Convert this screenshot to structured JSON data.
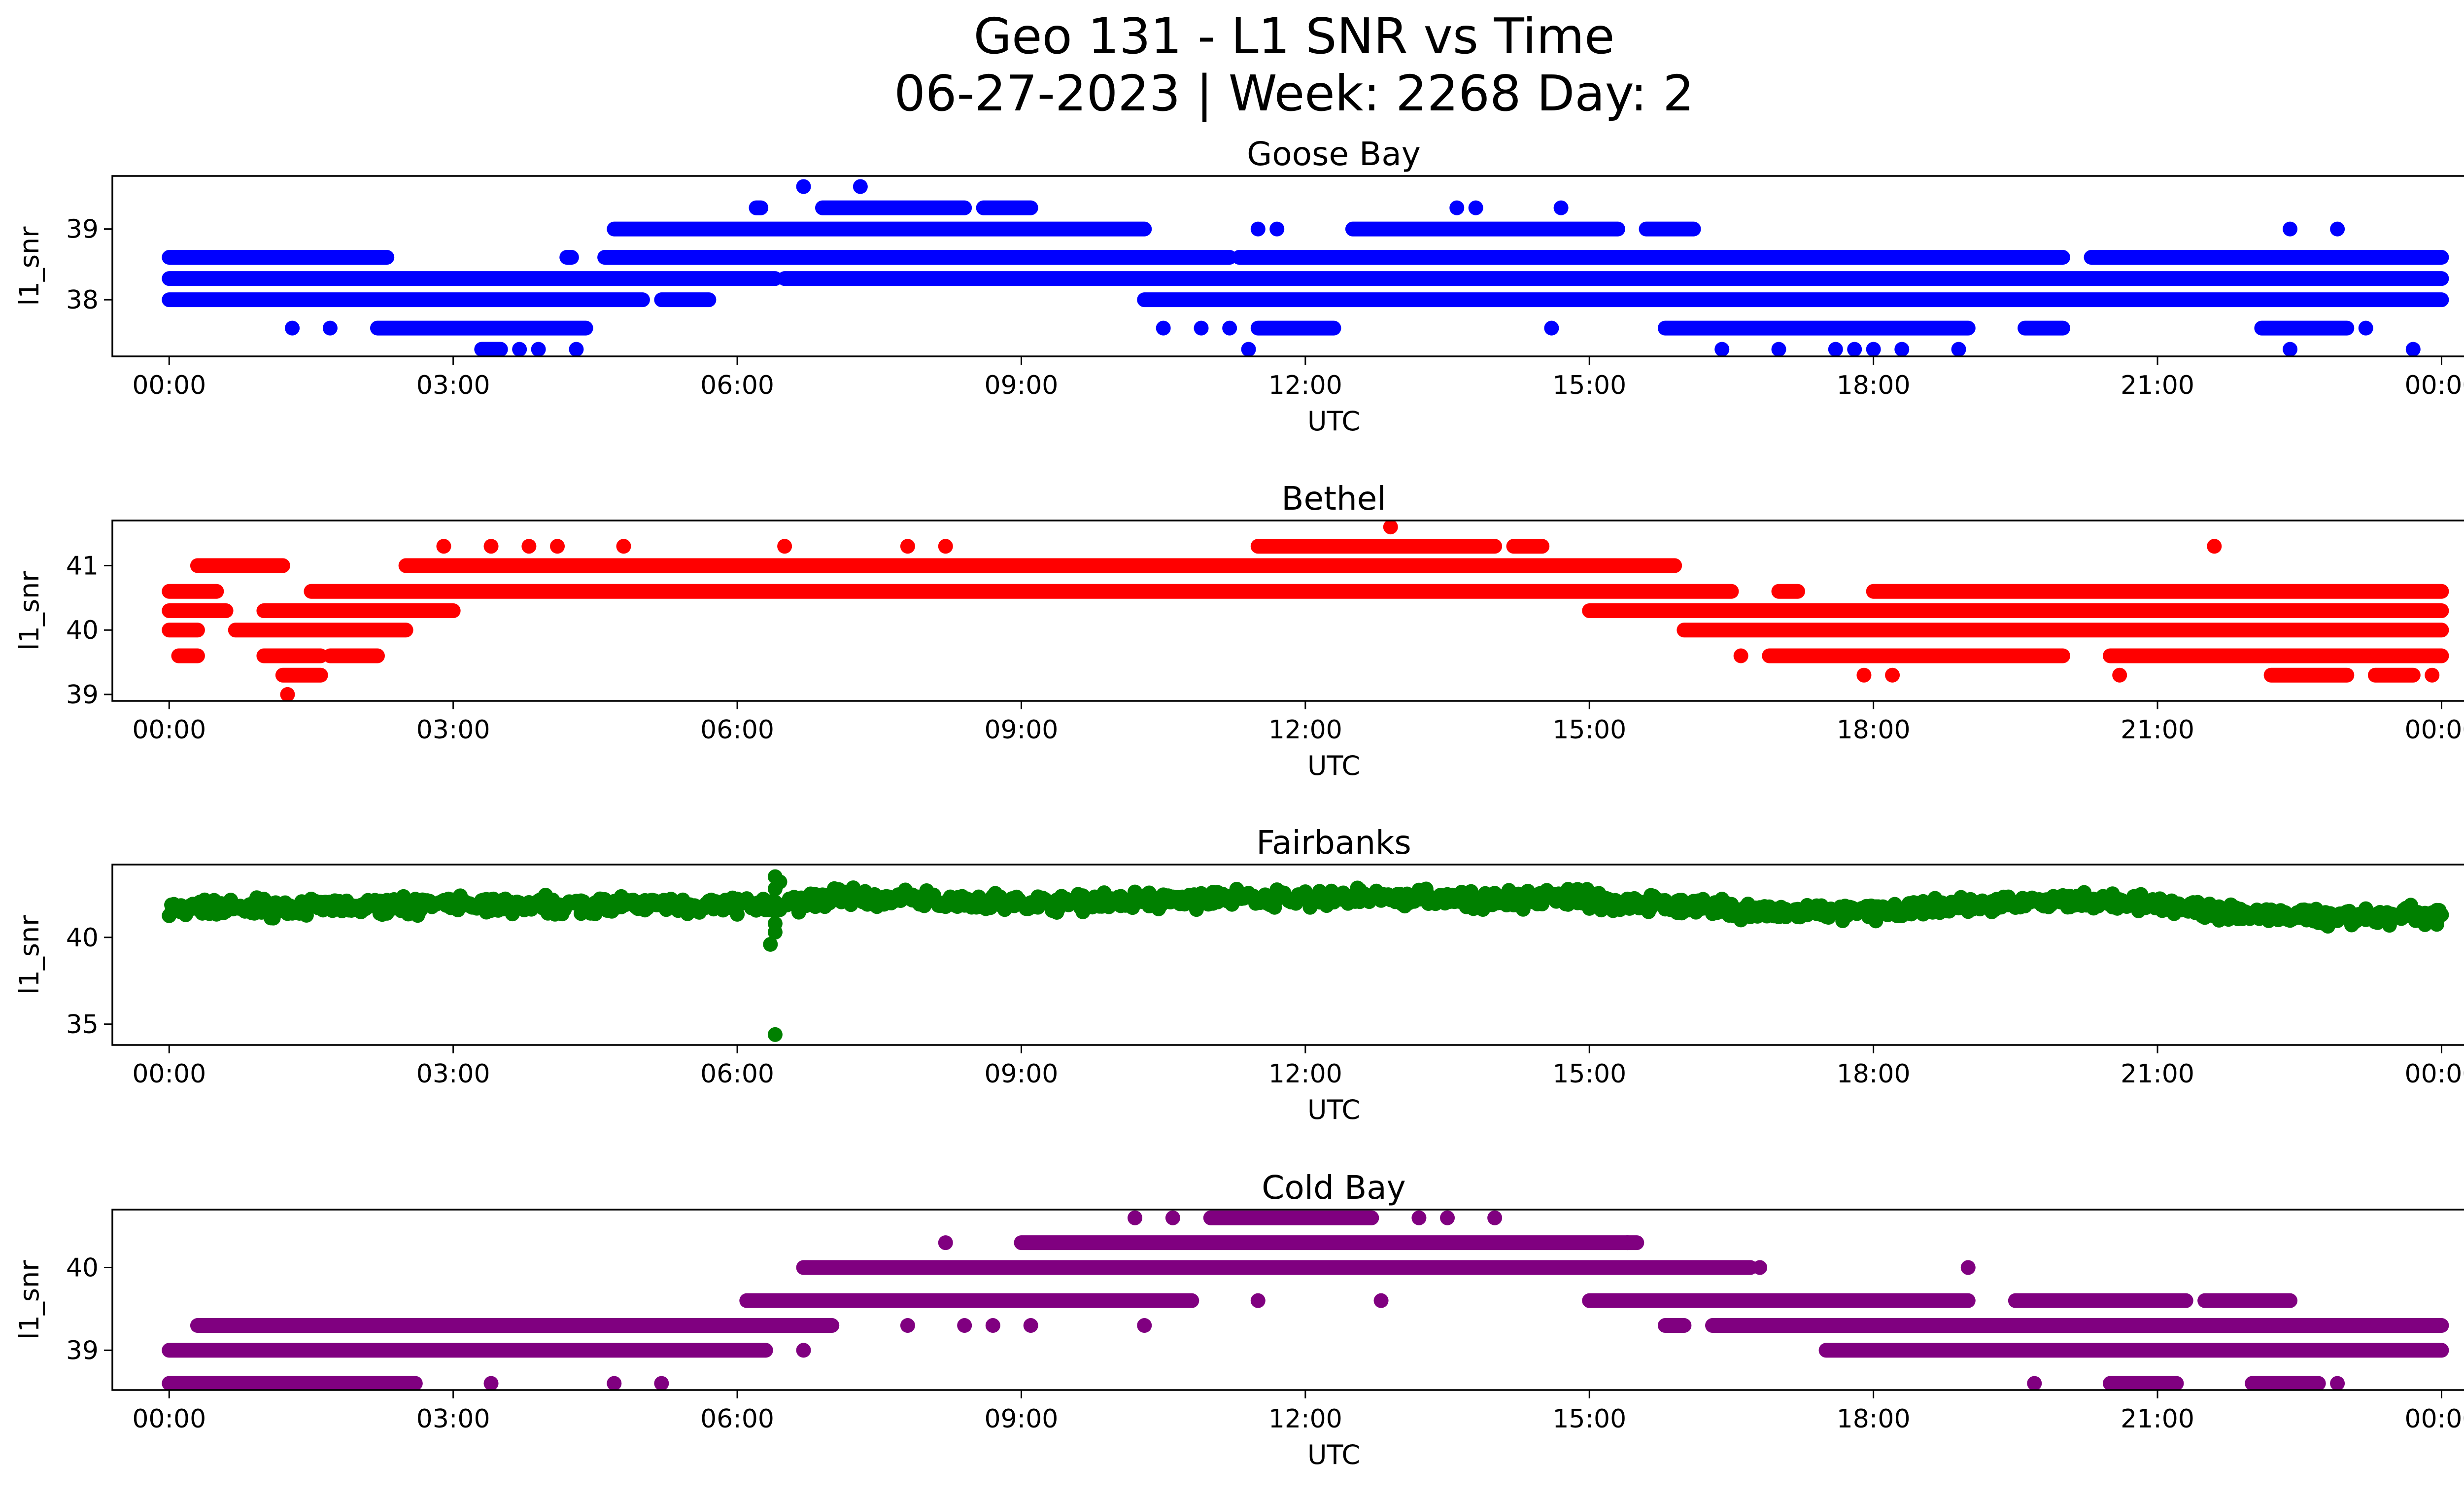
{
  "figure": {
    "title_line1": "Geo 131 - L1 SNR vs Time",
    "title_line2": "06-27-2023 | Week: 2268 Day: 2"
  },
  "chart_data": [
    {
      "type": "scatter",
      "title": "Goose Bay",
      "xlabel": "UTC",
      "ylabel": "l1_snr",
      "color": "#0000ff",
      "xlim_hours": [
        -0.6,
        25.2
      ],
      "ylim": [
        37.2,
        39.75
      ],
      "yticks": [
        38,
        39
      ],
      "xtick_labels": [
        "00:00",
        "03:00",
        "06:00",
        "09:00",
        "12:00",
        "15:00",
        "18:00",
        "21:00",
        "00:00"
      ],
      "levels": [
        {
          "y": 38.0,
          "segments": [
            [
              0,
              5.0
            ],
            [
              5.2,
              5.7
            ],
            [
              10.3,
              24.0
            ]
          ]
        },
        {
          "y": 38.3,
          "segments": [
            [
              0,
              6.4
            ],
            [
              6.5,
              24.0
            ]
          ]
        },
        {
          "y": 38.6,
          "segments": [
            [
              0,
              2.3
            ],
            [
              4.2,
              4.25
            ],
            [
              4.6,
              11.2
            ],
            [
              11.3,
              20.0
            ],
            [
              20.3,
              24.0
            ]
          ]
        },
        {
          "y": 39.0,
          "segments": [
            [
              4.7,
              10.3
            ],
            [
              12.5,
              15.3
            ],
            [
              15.6,
              16.1
            ]
          ]
        },
        {
          "y": 39.3,
          "segments": [
            [
              6.2,
              6.25
            ],
            [
              6.9,
              8.4
            ],
            [
              8.6,
              9.1
            ]
          ]
        },
        {
          "y": 37.6,
          "segments": [
            [
              2.2,
              4.4
            ],
            [
              11.5,
              12.3
            ],
            [
              15.8,
              19.0
            ],
            [
              19.6,
              20.0
            ],
            [
              22.1,
              23.0
            ]
          ]
        },
        {
          "y": 37.3,
          "segments": [
            [
              3.3,
              3.5
            ]
          ]
        }
      ],
      "isolated_points": [
        [
          6.7,
          39.6
        ],
        [
          7.3,
          39.6
        ],
        [
          13.6,
          39.3
        ],
        [
          13.8,
          39.3
        ],
        [
          14.7,
          39.3
        ],
        [
          11.5,
          39.0
        ],
        [
          11.7,
          39.0
        ],
        [
          22.4,
          39.0
        ],
        [
          22.9,
          39.0
        ],
        [
          1.3,
          37.6
        ],
        [
          1.7,
          37.6
        ],
        [
          10.5,
          37.6
        ],
        [
          10.9,
          37.6
        ],
        [
          11.2,
          37.6
        ],
        [
          14.6,
          37.6
        ],
        [
          23.2,
          37.6
        ],
        [
          3.7,
          37.3
        ],
        [
          3.9,
          37.3
        ],
        [
          4.3,
          37.3
        ],
        [
          11.4,
          37.3
        ],
        [
          16.4,
          37.3
        ],
        [
          17.0,
          37.3
        ],
        [
          17.6,
          37.3
        ],
        [
          17.8,
          37.3
        ],
        [
          18.0,
          37.3
        ],
        [
          18.3,
          37.3
        ],
        [
          18.9,
          37.3
        ],
        [
          22.4,
          37.3
        ],
        [
          23.7,
          37.3
        ]
      ]
    },
    {
      "type": "scatter",
      "title": "Bethel",
      "xlabel": "UTC",
      "ylabel": "l1_snr",
      "color": "#ff0000",
      "xlim_hours": [
        -0.6,
        25.2
      ],
      "ylim": [
        38.9,
        41.7
      ],
      "yticks": [
        39,
        40,
        41
      ],
      "xtick_labels": [
        "00:00",
        "03:00",
        "06:00",
        "09:00",
        "12:00",
        "15:00",
        "18:00",
        "21:00",
        "00:00"
      ],
      "levels": [
        {
          "y": 40.0,
          "segments": [
            [
              0,
              0.3
            ],
            [
              0.7,
              2.5
            ],
            [
              16.0,
              24.0
            ]
          ]
        },
        {
          "y": 40.3,
          "segments": [
            [
              0,
              0.6
            ],
            [
              1.0,
              3.0
            ],
            [
              15.0,
              24.0
            ]
          ]
        },
        {
          "y": 40.6,
          "segments": [
            [
              0,
              0.5
            ],
            [
              1.5,
              16.5
            ],
            [
              17.0,
              17.2
            ],
            [
              18.0,
              24.0
            ]
          ]
        },
        {
          "y": 41.0,
          "segments": [
            [
              0.3,
              1.2
            ],
            [
              2.5,
              15.9
            ]
          ]
        },
        {
          "y": 41.3,
          "segments": [
            [
              11.5,
              14.0
            ],
            [
              14.2,
              14.5
            ]
          ]
        },
        {
          "y": 39.6,
          "segments": [
            [
              0.1,
              0.3
            ],
            [
              1.0,
              1.6
            ],
            [
              1.7,
              2.2
            ],
            [
              16.9,
              20.0
            ],
            [
              20.5,
              24.0
            ]
          ]
        },
        {
          "y": 39.3,
          "segments": [
            [
              1.2,
              1.6
            ],
            [
              22.2,
              23.0
            ],
            [
              23.3,
              23.7
            ]
          ]
        }
      ],
      "isolated_points": [
        [
          1.25,
          39.0
        ],
        [
          12.9,
          41.6
        ],
        [
          2.9,
          41.3
        ],
        [
          3.4,
          41.3
        ],
        [
          3.8,
          41.3
        ],
        [
          4.1,
          41.3
        ],
        [
          4.8,
          41.3
        ],
        [
          6.5,
          41.3
        ],
        [
          7.8,
          41.3
        ],
        [
          8.2,
          41.3
        ],
        [
          21.6,
          41.3
        ],
        [
          16.6,
          39.6
        ],
        [
          17.9,
          39.3
        ],
        [
          18.2,
          39.3
        ],
        [
          20.6,
          39.3
        ],
        [
          23.9,
          39.3
        ]
      ]
    },
    {
      "type": "scatter",
      "title": "Fairbanks",
      "xlabel": "UTC",
      "ylabel": "l1_snr",
      "color": "#008000",
      "xlim_hours": [
        -0.6,
        25.2
      ],
      "ylim": [
        33.8,
        44.2
      ],
      "yticks": [
        35,
        40
      ],
      "xtick_labels": [
        "00:00",
        "03:00",
        "06:00",
        "09:00",
        "12:00",
        "15:00",
        "18:00",
        "21:00",
        "00:00"
      ],
      "trend": [
        [
          0,
          41.6
        ],
        [
          3,
          41.9
        ],
        [
          6,
          41.9
        ],
        [
          6.5,
          41.9
        ],
        [
          7,
          42.3
        ],
        [
          9,
          42.0
        ],
        [
          12,
          42.3
        ],
        [
          14,
          42.2
        ],
        [
          15,
          42.2
        ],
        [
          16,
          41.8
        ],
        [
          17,
          41.4
        ],
        [
          18,
          41.5
        ],
        [
          19,
          41.8
        ],
        [
          20,
          42.1
        ],
        [
          21,
          42.0
        ],
        [
          22,
          41.3
        ],
        [
          23,
          41.2
        ],
        [
          24,
          41.3
        ]
      ],
      "spike_points": [
        [
          6.4,
          43.5
        ],
        [
          6.4,
          42.8
        ],
        [
          6.45,
          43.2
        ],
        [
          6.4,
          40.8
        ],
        [
          6.4,
          40.3
        ],
        [
          6.35,
          39.6
        ],
        [
          6.4,
          34.4
        ]
      ]
    },
    {
      "type": "scatter",
      "title": "Cold Bay",
      "xlabel": "UTC",
      "ylabel": "l1_snr",
      "color": "#800080",
      "xlim_hours": [
        -0.6,
        25.2
      ],
      "ylim": [
        38.52,
        40.7
      ],
      "yticks": [
        39,
        40
      ],
      "xtick_labels": [
        "00:00",
        "03:00",
        "06:00",
        "09:00",
        "12:00",
        "15:00",
        "18:00",
        "21:00",
        "00:00"
      ],
      "levels": [
        {
          "y": 39.0,
          "segments": [
            [
              0,
              6.3
            ],
            [
              17.5,
              24.0
            ]
          ]
        },
        {
          "y": 39.3,
          "segments": [
            [
              0.3,
              7.0
            ],
            [
              15.8,
              16.0
            ],
            [
              16.3,
              24.0
            ]
          ]
        },
        {
          "y": 39.6,
          "segments": [
            [
              6.1,
              10.8
            ],
            [
              15.0,
              19.0
            ],
            [
              19.5,
              21.3
            ],
            [
              21.5,
              22.4
            ]
          ]
        },
        {
          "y": 40.0,
          "segments": [
            [
              6.7,
              16.7
            ]
          ]
        },
        {
          "y": 40.3,
          "segments": [
            [
              9.0,
              15.5
            ]
          ]
        },
        {
          "y": 40.6,
          "segments": [
            [
              11.0,
              12.7
            ]
          ]
        },
        {
          "y": 38.6,
          "segments": [
            [
              0,
              2.6
            ],
            [
              20.5,
              21.2
            ],
            [
              22.0,
              22.7
            ]
          ]
        }
      ],
      "isolated_points": [
        [
          10.2,
          40.6
        ],
        [
          10.6,
          40.6
        ],
        [
          13.2,
          40.6
        ],
        [
          13.5,
          40.6
        ],
        [
          14.0,
          40.6
        ],
        [
          19.0,
          40.0
        ],
        [
          16.8,
          40.0
        ],
        [
          8.2,
          40.3
        ],
        [
          15.4,
          40.3
        ],
        [
          7.8,
          39.3
        ],
        [
          8.4,
          39.3
        ],
        [
          8.7,
          39.3
        ],
        [
          9.1,
          39.3
        ],
        [
          10.3,
          39.3
        ],
        [
          12.8,
          39.6
        ],
        [
          11.5,
          39.6
        ],
        [
          3.4,
          38.6
        ],
        [
          4.7,
          38.6
        ],
        [
          5.2,
          38.6
        ],
        [
          19.7,
          38.6
        ],
        [
          22.9,
          38.6
        ],
        [
          6.7,
          39.0
        ]
      ]
    }
  ]
}
